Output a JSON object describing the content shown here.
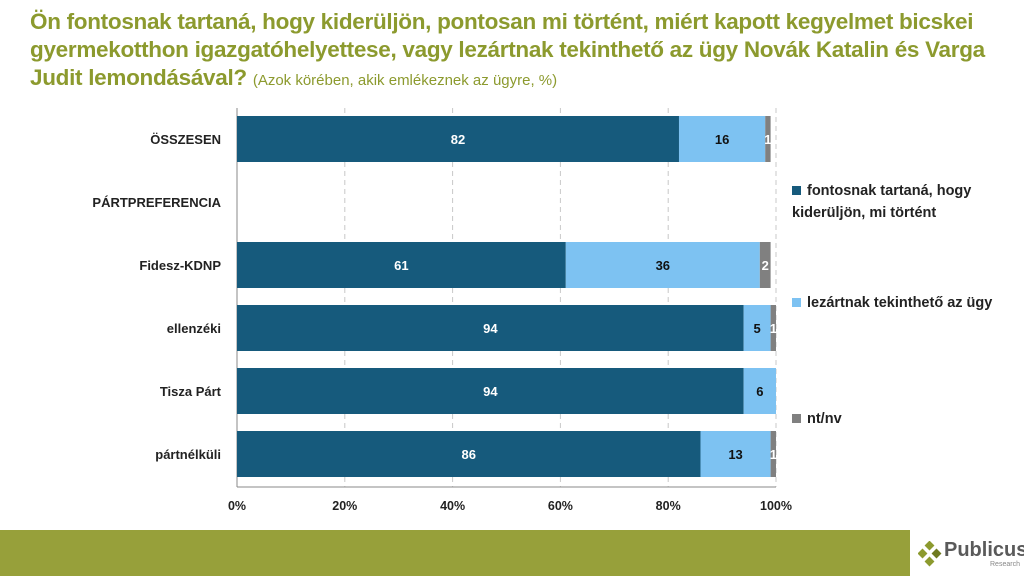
{
  "title": {
    "main": "Ön fontosnak tartaná, hogy kiderüljön, pontosan mi történt, miért kapott kegyelmet bicskei gyermekotthon igazgatóhelyettese, vagy lezártnak tekinthető az ügy Novák Katalin és Varga Judit lemondásával?",
    "sub": "(Azok körében, akik emlékeznek az ügyre, %)"
  },
  "chart_data": {
    "type": "bar",
    "stacked": true,
    "orientation": "horizontal",
    "categories": [
      "ÖSSZESEN",
      "PÁRTPREFERENCIA",
      "Fidesz-KDNP",
      "ellenzéki",
      "Tisza Párt",
      "pártnélküli"
    ],
    "series": [
      {
        "name": "fontosnak tartaná, hogy kiderüljön, mi történt",
        "color": "#165a7c",
        "values": [
          82,
          null,
          61,
          94,
          94,
          86
        ]
      },
      {
        "name": "lezártnak tekinthető az ügy",
        "color": "#7dc2f2",
        "values": [
          16,
          null,
          36,
          5,
          6,
          13
        ]
      },
      {
        "name": "nt/nv",
        "color": "#808080",
        "values": [
          1,
          null,
          2,
          1,
          0,
          1
        ]
      }
    ],
    "xlim": [
      0,
      100
    ],
    "xticks": [
      "0%",
      "20%",
      "40%",
      "60%",
      "80%",
      "100%"
    ],
    "grid": "vertical dashed",
    "legend": "right"
  },
  "logo": {
    "name": "Publicus",
    "sub": "Research"
  }
}
